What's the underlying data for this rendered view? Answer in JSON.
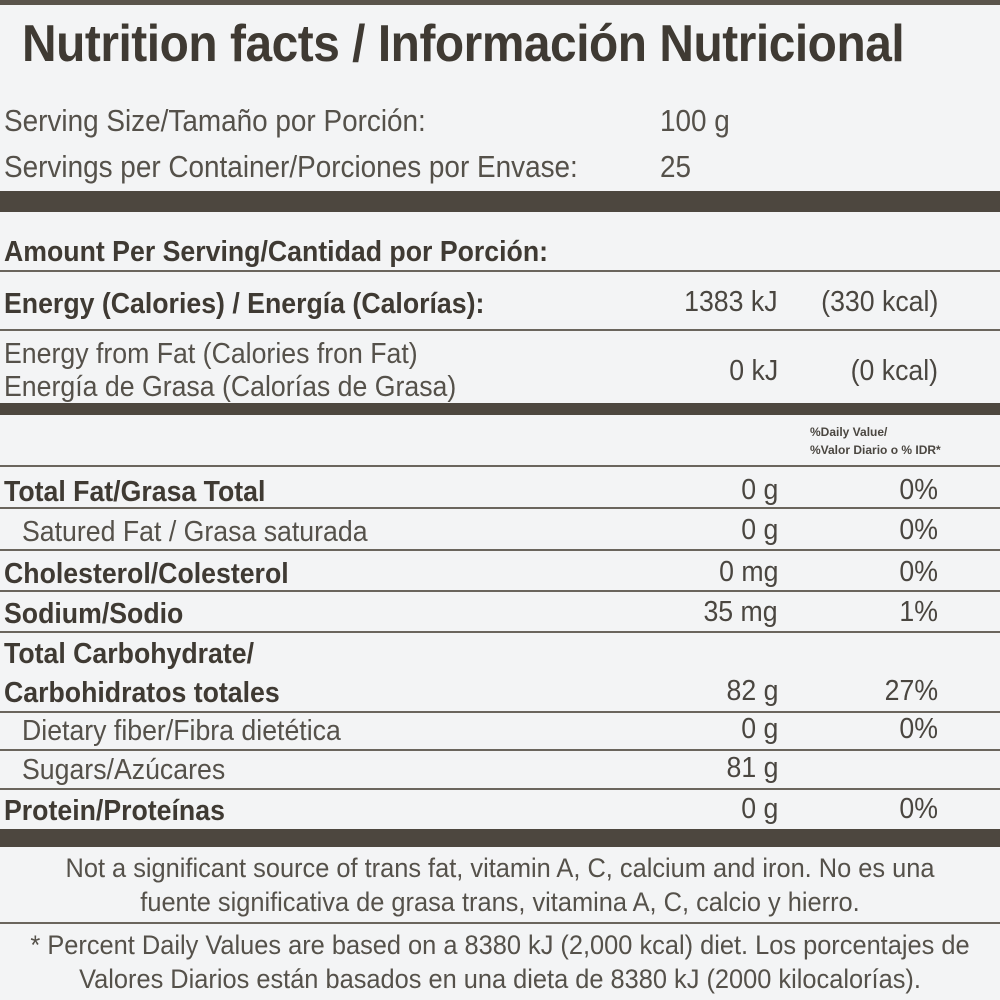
{
  "title": "Nutrition facts / Información Nutricional",
  "serving": {
    "size_label": "Serving Size/Tamaño por Porción:",
    "size_value": "100 g",
    "per_container_label": "Servings per Container/Porciones por Envase:",
    "per_container_value": "25"
  },
  "amount_header": "Amount Per Serving/Cantidad por Porción:",
  "energy": {
    "label": "Energy (Calories) / Energía (Calorías):",
    "kj": "1383 kJ",
    "kcal": "(330 kcal)"
  },
  "energy_fat": {
    "label_line1": "Energy from Fat (Calories fron Fat)",
    "label_line2": "Energía de Grasa (Calorías de Grasa)",
    "kj": "0 kJ",
    "kcal": "(0 kcal)"
  },
  "dv_header": {
    "line1": "%Daily Value/",
    "line2": "%Valor Diario o % IDR*"
  },
  "nutrients": {
    "total_fat": {
      "label": "Total Fat/Grasa Total",
      "amount": "0 g",
      "dv": "0%"
    },
    "saturated_fat": {
      "label": "Satured Fat / Grasa saturada",
      "amount": "0 g",
      "dv": "0%"
    },
    "cholesterol": {
      "label": "Cholesterol/Colesterol",
      "amount": "0 mg",
      "dv": "0%"
    },
    "sodium": {
      "label": "Sodium/Sodio",
      "amount": "35 mg",
      "dv": "1%"
    },
    "carbohydrate": {
      "label_line1": "Total Carbohydrate/",
      "label_line2": "Carbohidratos totales",
      "amount": "82 g",
      "dv": "27%"
    },
    "fiber": {
      "label": "Dietary fiber/Fibra dietética",
      "amount": "0 g",
      "dv": "0%"
    },
    "sugars": {
      "label": "Sugars/Azúcares",
      "amount": "81 g"
    },
    "protein": {
      "label": "Protein/Proteínas",
      "amount": "0 g",
      "dv": "0%"
    }
  },
  "footnotes": {
    "trans_fat": "Not a significant source of trans fat, vitamin A, C, calcium and iron. No es una fuente significativa de grasa trans, vitamina A, C, calcio y hierro.",
    "daily_values": "* Percent Daily Values are based on a 8380 kJ (2,000 kcal) diet. Los porcentajes de Valores Diarios están basados en una dieta de 8380 kJ (2000 kilocalorías)."
  }
}
